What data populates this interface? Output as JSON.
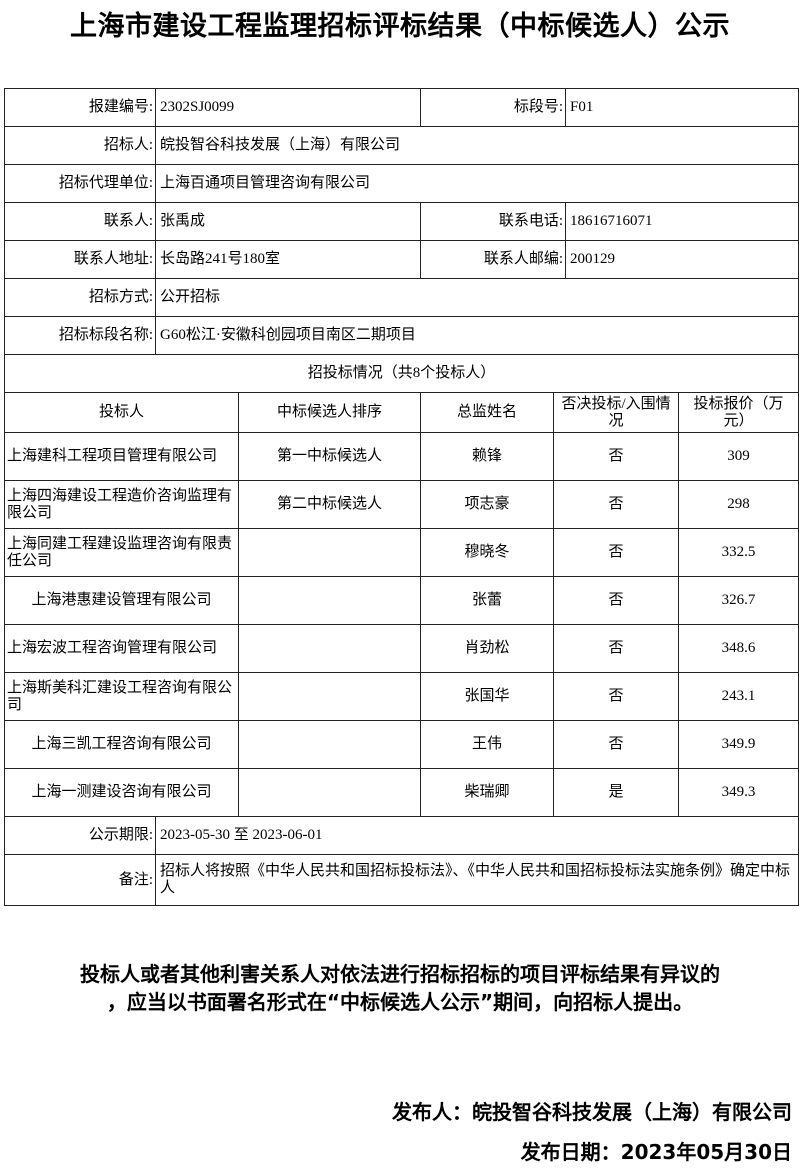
{
  "title": "上海市建设工程监理招标评标结果（中标候选人）公示",
  "info": {
    "project_no_label": "报建编号:",
    "project_no": "2302SJ0099",
    "section_no_label": "标段号:",
    "section_no": "F01",
    "tenderer_label": "招标人:",
    "tenderer": "皖投智谷科技发展（上海）有限公司",
    "agency_label": "招标代理单位:",
    "agency": "上海百通项目管理咨询有限公司",
    "contact_label": "联系人:",
    "contact": "张禹成",
    "phone_label": "联系电话:",
    "phone": "18616716071",
    "address_label": "联系人地址:",
    "address": "长岛路241号180室",
    "postcode_label": "联系人邮编:",
    "postcode": "200129",
    "method_label": "招标方式:",
    "method": "公开招标",
    "section_name_label": "招标标段名称:",
    "section_name": "G60松江·安徽科创园项目南区二期项目"
  },
  "bids": {
    "heading": "招投标情况（共8个投标人）",
    "columns": [
      "投标人",
      "中标候选人排序",
      "总监姓名",
      "否决投标/入围情况",
      "投标报价（万元）"
    ],
    "rows": [
      [
        "上海建科工程项目管理有限公司",
        "第一中标候选人",
        "赖锋",
        "否",
        "309"
      ],
      [
        "上海四海建设工程造价咨询监理有限公司",
        "第二中标候选人",
        "项志豪",
        "否",
        "298"
      ],
      [
        "上海同建工程建设监理咨询有限责任公司",
        "",
        "穆晓冬",
        "否",
        "332.5"
      ],
      [
        "上海港惠建设管理有限公司",
        "",
        "张蕾",
        "否",
        "326.7"
      ],
      [
        "上海宏波工程咨询管理有限公司",
        "",
        "肖劲松",
        "否",
        "348.6"
      ],
      [
        "上海斯美科汇建设工程咨询有限公司",
        "",
        "张国华",
        "否",
        "243.1"
      ],
      [
        "上海三凯工程咨询有限公司",
        "",
        "王伟",
        "否",
        "349.9"
      ],
      [
        "上海一测建设咨询有限公司",
        "",
        "柴瑞卿",
        "是",
        "349.3"
      ]
    ]
  },
  "period_label": "公示期限:",
  "period": "2023-05-30 至 2023-06-01",
  "remark_label": "备注:",
  "remark": "招标人将按照《中华人民共和国招标投标法》、《中华人民共和国招标投标法实施条例》确定中标人",
  "notice_line1": "投标人或者其他利害关系人对依法进行招标招标的项目评标结果有异议的",
  "notice_line2": "，应当以书面署名形式在“中标候选人公示”期间，向招标人提出。",
  "publisher": "发布人：皖投智谷科技发展（上海）有限公司",
  "publish_date": "发布日期：2023年05月30日"
}
